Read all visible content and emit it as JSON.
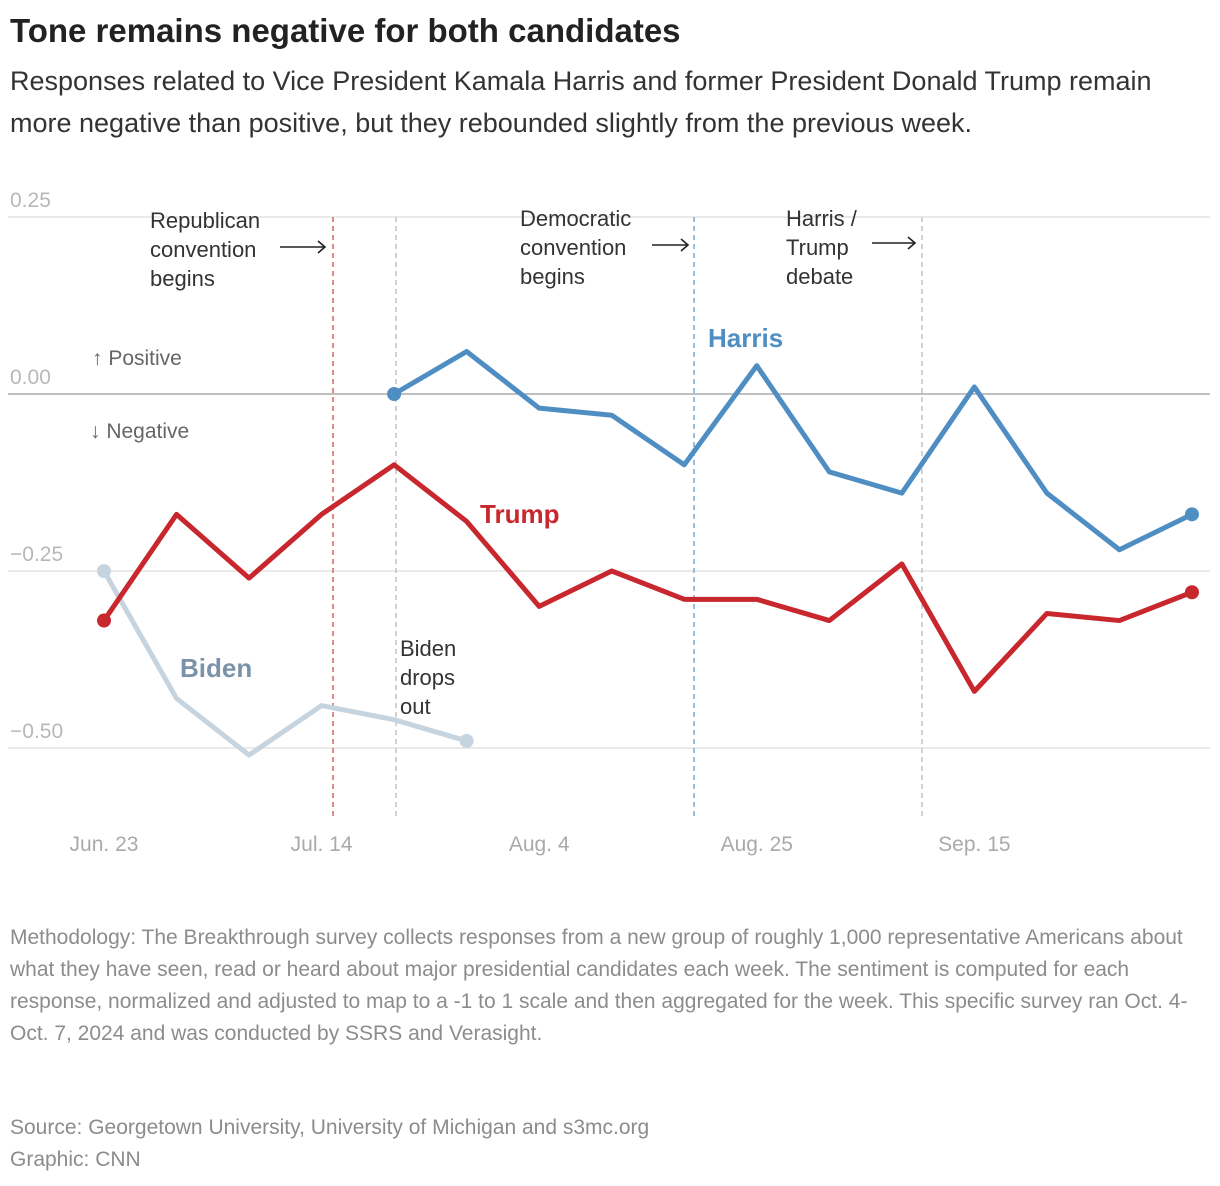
{
  "chart_data": {
    "type": "line",
    "title": "Tone remains negative for both candidates",
    "subtitle": "Responses related to Vice President Kamala Harris and former President Donald Trump remain more negative than positive, but they rebounded slightly from the previous week.",
    "categories": [
      "Jun. 23",
      null,
      null,
      "Jul. 14",
      null,
      null,
      "Aug. 4",
      null,
      null,
      "Aug. 25",
      null,
      null,
      "Sep. 15",
      null,
      null,
      null
    ],
    "series": [
      {
        "name": "Harris",
        "color": "#4f8ec3",
        "label_color": "#4f8ec3",
        "values": [
          null,
          null,
          null,
          null,
          0.0,
          0.06,
          -0.02,
          -0.03,
          -0.1,
          0.04,
          -0.11,
          -0.14,
          0.01,
          -0.14,
          -0.22,
          -0.17
        ]
      },
      {
        "name": "Trump",
        "color": "#c8272d",
        "label_color": "#c8272d",
        "values": [
          -0.32,
          -0.17,
          -0.26,
          -0.17,
          -0.1,
          -0.18,
          -0.3,
          -0.25,
          -0.29,
          -0.29,
          -0.32,
          -0.24,
          -0.42,
          -0.31,
          -0.32,
          -0.28
        ]
      },
      {
        "name": "Biden",
        "color": "#c6d4df",
        "label_color": "#7b93a8",
        "values": [
          -0.25,
          -0.43,
          -0.51,
          -0.44,
          -0.46,
          -0.49,
          null,
          null,
          null,
          null,
          null,
          null,
          null,
          null,
          null,
          null
        ]
      }
    ],
    "ylim": [
      -0.6,
      0.25
    ],
    "yticks": [
      {
        "value": 0.25,
        "label": "0.25"
      },
      {
        "value": 0,
        "label": "0.00"
      },
      {
        "value": -0.25,
        "label": "−0.25"
      },
      {
        "value": -0.5,
        "label": "−0.50"
      }
    ],
    "grid": true,
    "direction_labels": {
      "positive": "↑ Positive",
      "negative": "↓ Negative"
    },
    "annotations": [
      {
        "text": "Republican\nconvention\nbegins",
        "color": "#e07b80"
      },
      {
        "text": "Biden\ndrops\nout",
        "color": "#cccccc"
      },
      {
        "text": "Democratic\nconvention\nbegins",
        "color": "#8fb8d8"
      },
      {
        "text": "Harris /\nTrump\ndebate",
        "color": "#cccccc"
      }
    ],
    "methodology": "Methodology: The Breakthrough survey collects responses from a new group of roughly 1,000 representative Americans about what they have seen, read or heard about major presidential candidates each week. The sentiment is computed for each response, normalized and adjusted to map to a -1 to 1 scale and then aggregated for the week. This specific survey ran Oct. 4-Oct. 7, 2024 and was conducted by SSRS and Verasight.",
    "source": "Source: Georgetown University, University of Michigan and s3mc.org",
    "credit": "Graphic: CNN"
  }
}
